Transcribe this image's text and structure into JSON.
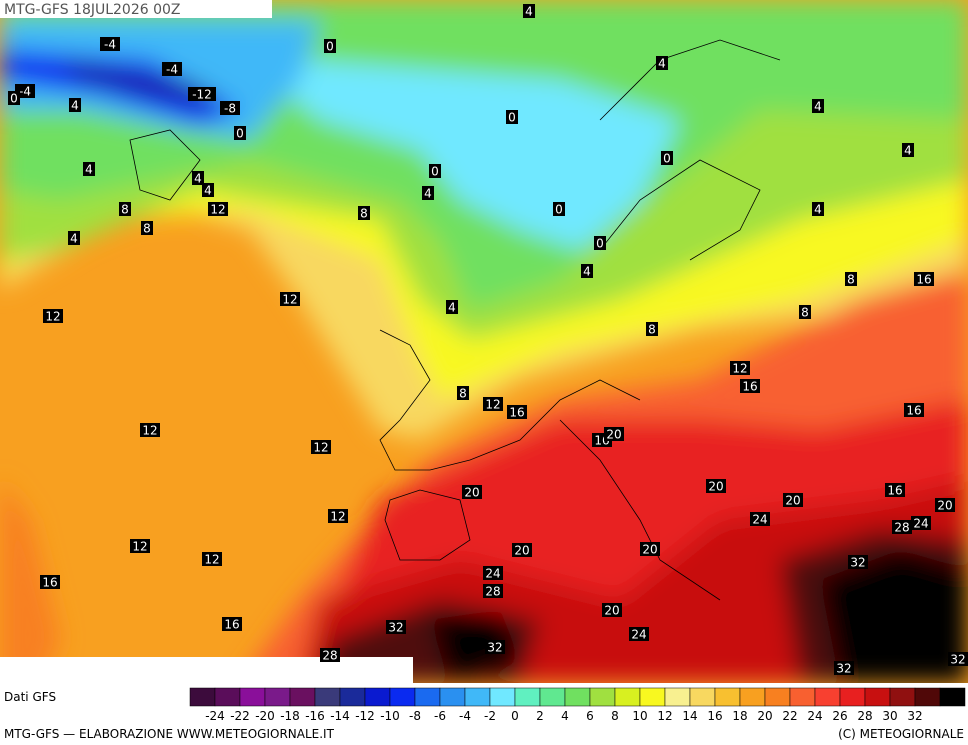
{
  "header": {
    "title": "MTG-GFS 18JUL2026 00Z"
  },
  "contour_labels": [
    -4,
    -4,
    -12,
    -8,
    -4,
    0,
    4,
    0,
    0,
    4,
    4,
    4,
    4,
    0,
    0,
    0,
    4,
    0,
    0,
    4,
    4,
    4,
    4,
    8,
    12,
    8,
    8,
    4,
    4,
    8,
    16,
    12,
    4,
    8,
    8,
    12,
    12,
    16,
    8,
    12,
    16,
    16,
    12,
    12,
    16,
    20,
    20,
    20,
    20,
    16,
    20,
    12,
    24,
    24,
    28,
    12,
    20,
    20,
    12,
    32,
    24,
    28,
    16,
    16,
    20,
    32,
    24,
    32,
    28,
    32,
    32
  ],
  "legend": {
    "source": "Dati GFS",
    "colors": [
      "#3c0b3c",
      "#5a0d5a",
      "#8a0f9a",
      "#7a1a8a",
      "#6a1060",
      "#3a3a7a",
      "#1a2a9a",
      "#0a1ad0",
      "#0a2af0",
      "#1a6af0",
      "#2a90f0",
      "#40b8f8",
      "#70e8ff",
      "#60f0c0",
      "#60e890",
      "#70e060",
      "#a0e040",
      "#d8f020",
      "#f8f820",
      "#f8f090",
      "#f8d860",
      "#f8c030",
      "#f8a020",
      "#f88020",
      "#f86030",
      "#f84030",
      "#e82020",
      "#c81010",
      "#901010",
      "#500808",
      "#000000"
    ],
    "ticks": [
      -24,
      -22,
      -20,
      -18,
      -16,
      -14,
      -12,
      -10,
      -8,
      -6,
      -4,
      -2,
      0,
      2,
      4,
      6,
      8,
      10,
      12,
      14,
      16,
      18,
      20,
      22,
      24,
      26,
      28,
      30,
      32
    ]
  },
  "footer": {
    "left": "MTG-GFS — ELABORAZIONE WWW.METEOGIORNALE.IT",
    "right": "(C) METEOGIORNALE"
  }
}
